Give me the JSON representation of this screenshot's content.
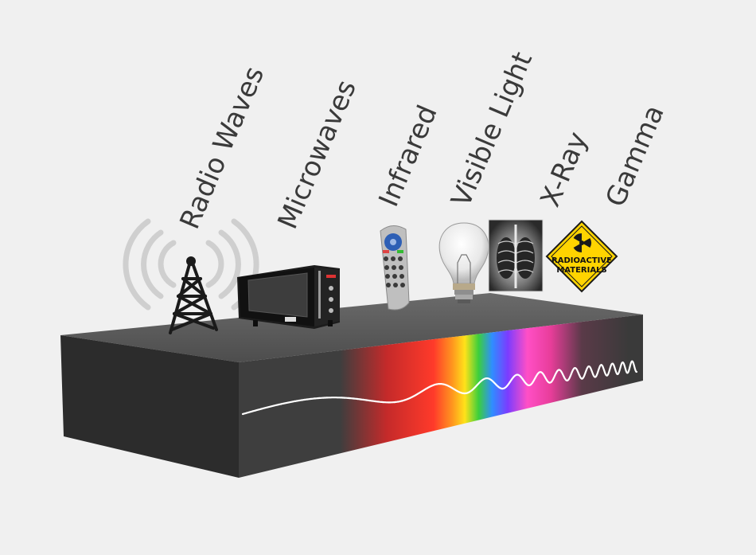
{
  "bands": [
    {
      "id": "radio",
      "label": "Radio Waves"
    },
    {
      "id": "microwaves",
      "label": "Microwaves"
    },
    {
      "id": "infrared",
      "label": "Infrared"
    },
    {
      "id": "visible",
      "label": "Visible Light"
    },
    {
      "id": "xray",
      "label": "X-Ray"
    },
    {
      "id": "gamma",
      "label": "Gamma"
    }
  ],
  "sign": {
    "line1": "RADIOACTIVE",
    "line2": "MATERIALS"
  },
  "colors": {
    "background": "#f0f0f0",
    "block_top": "#575757",
    "block_front": "#3e3e3e",
    "block_side": "#2c2c2c",
    "wave": "#ffffff",
    "label": "#3a3a3a",
    "sign": "#ffd400"
  }
}
